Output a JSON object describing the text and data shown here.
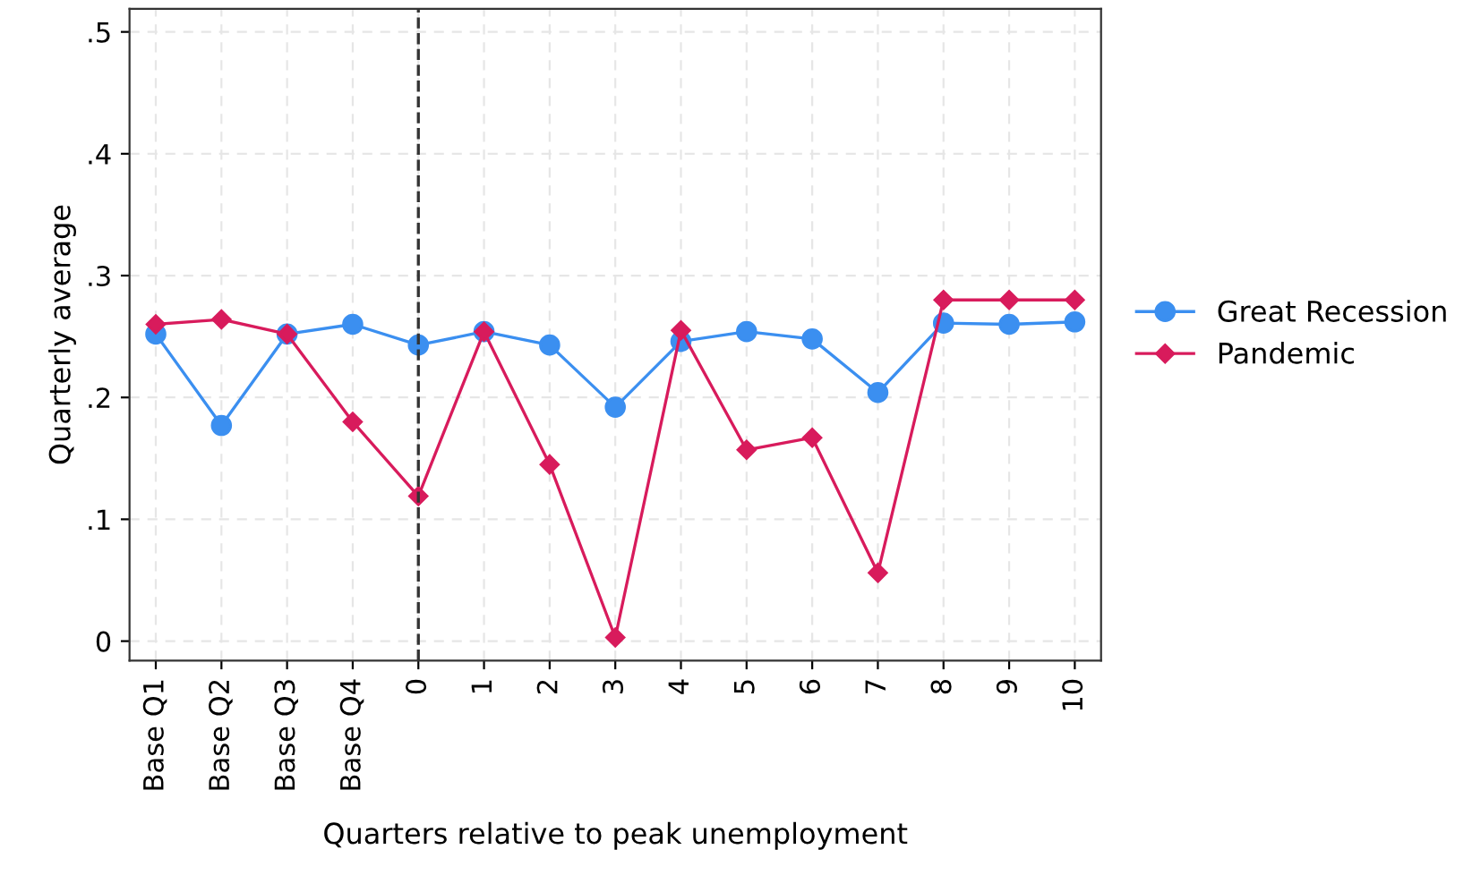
{
  "chart_data": {
    "type": "line",
    "xlabel": "Quarters relative to peak unemployment",
    "ylabel": "Quarterly average",
    "categories": [
      "Base Q1",
      "Base Q2",
      "Base Q3",
      "Base Q4",
      "0",
      "1",
      "2",
      "3",
      "4",
      "5",
      "6",
      "7",
      "8",
      "9",
      "10"
    ],
    "series": [
      {
        "name": "Great Recession",
        "color": "#3b8ff0",
        "marker": "circle",
        "values": [
          0.252,
          0.177,
          0.252,
          0.26,
          0.243,
          0.254,
          0.243,
          0.192,
          0.246,
          0.254,
          0.248,
          0.204,
          0.261,
          0.26,
          0.262
        ]
      },
      {
        "name": "Pandemic",
        "color": "#d81b5c",
        "marker": "diamond",
        "values": [
          0.26,
          0.264,
          0.252,
          0.18,
          0.119,
          0.254,
          0.145,
          0.003,
          0.255,
          0.157,
          0.167,
          0.056,
          0.28,
          0.28,
          0.28
        ]
      }
    ],
    "ylim": [
      -0.016,
      0.519
    ],
    "yticks": [
      0,
      {
        "value": 0.1,
        "label": ".1"
      },
      {
        "value": 0.2,
        "label": ".2"
      },
      {
        "value": 0.3,
        "label": ".3"
      },
      {
        "value": 0.4,
        "label": ".4"
      },
      {
        "value": 0.5,
        "label": ".5"
      }
    ],
    "ref_lines": [
      {
        "axis": "x",
        "value": "0",
        "color": "#333333",
        "line_style": "dashed"
      }
    ],
    "grid": true,
    "legend": "right",
    "line_style": "solid"
  }
}
